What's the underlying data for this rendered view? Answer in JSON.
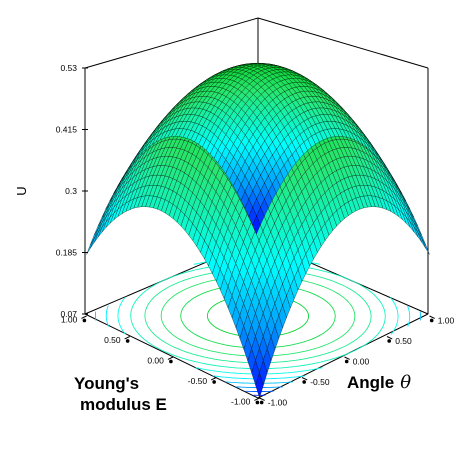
{
  "chart_data": {
    "type": "surface3d",
    "title": "",
    "zlabel": "U",
    "xlabel_line1": "Young's",
    "xlabel_line2": "modulus E",
    "ylabel_text": "Angle",
    "ylabel_symbol": "θ",
    "x_ticks": [
      "1.00",
      "0.50",
      "0.00",
      "-0.50",
      "-1.00"
    ],
    "y_ticks": [
      "-1.00",
      "-0.50",
      "0.00",
      "0.50",
      "1.00"
    ],
    "z_ticks": [
      "0.53",
      "0.415",
      "0.3",
      "0.185",
      "0.07"
    ],
    "x_range": [
      -1,
      1
    ],
    "y_range": [
      -1,
      1
    ],
    "z_range": [
      0.07,
      0.53
    ],
    "surface": {
      "peak_value": 0.53,
      "peak_at": [
        0,
        0
      ],
      "corner_values": {
        "E=-1,theta=-1": 0.07,
        "E=1,theta=1": 0.07,
        "E=1,theta=-1": 0.185,
        "E=-1,theta=1": 0.185
      },
      "edge_mid_values": {
        "E=1,theta=0": 0.2,
        "E=0,theta=1": 0.2
      }
    },
    "contours": true,
    "colormap": [
      "#0000ff",
      "#00ffff",
      "#00ff00"
    ]
  }
}
